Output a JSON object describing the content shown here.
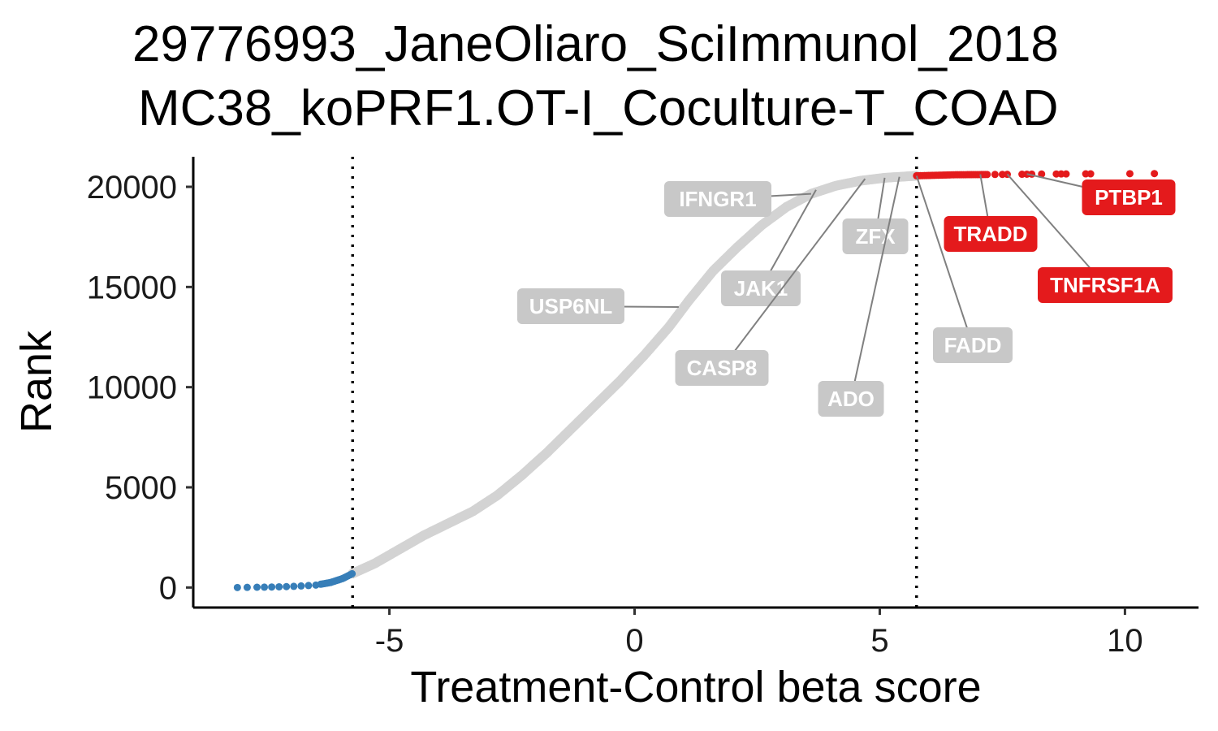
{
  "chart_data": {
    "type": "scatter",
    "title_line1": "29776993_JaneOliaro_SciImmunol_2018",
    "title_line2": "MC38_koPRF1.OT-I_Coculture-T_COAD",
    "xlabel": "Treatment-Control beta score",
    "ylabel": "Rank",
    "xlim": [
      -9,
      11.5
    ],
    "ylim": [
      -1000,
      21500
    ],
    "x_ticks": [
      {
        "value": -5,
        "label": "-5"
      },
      {
        "value": 0,
        "label": "0"
      },
      {
        "value": 5,
        "label": "5"
      },
      {
        "value": 10,
        "label": "10"
      }
    ],
    "y_ticks": [
      {
        "value": 0,
        "label": "0"
      },
      {
        "value": 5000,
        "label": "5000"
      },
      {
        "value": 10000,
        "label": "10000"
      },
      {
        "value": 15000,
        "label": "15000"
      },
      {
        "value": 20000,
        "label": "20000"
      }
    ],
    "thresholds": [
      -5.75,
      5.75
    ],
    "grid": false,
    "legend": "none",
    "colors": {
      "negative": "#377EB8",
      "neutral": "#D3D3D3",
      "positive": "#E41A1C",
      "neutral_label": "#C8C8C8"
    },
    "curve": [
      [
        -8.1,
        0
      ],
      [
        -7.5,
        20
      ],
      [
        -7.0,
        50
      ],
      [
        -6.5,
        120
      ],
      [
        -6.2,
        250
      ],
      [
        -5.95,
        450
      ],
      [
        -5.75,
        700
      ],
      [
        -5.3,
        1200
      ],
      [
        -4.8,
        1900
      ],
      [
        -4.3,
        2600
      ],
      [
        -3.8,
        3200
      ],
      [
        -3.3,
        3800
      ],
      [
        -2.8,
        4600
      ],
      [
        -2.3,
        5600
      ],
      [
        -1.8,
        6700
      ],
      [
        -1.3,
        7900
      ],
      [
        -0.8,
        9100
      ],
      [
        -0.3,
        10300
      ],
      [
        0.2,
        11600
      ],
      [
        0.7,
        13000
      ],
      [
        1.1,
        14300
      ],
      [
        1.6,
        15800
      ],
      [
        2.1,
        17000
      ],
      [
        2.6,
        18100
      ],
      [
        3.1,
        19000
      ],
      [
        3.6,
        19650
      ],
      [
        4.1,
        20050
      ],
      [
        4.6,
        20300
      ],
      [
        5.1,
        20450
      ],
      [
        5.75,
        20550
      ],
      [
        6.5,
        20600
      ],
      [
        7.5,
        20620
      ],
      [
        8.5,
        20640
      ],
      [
        9.5,
        20650
      ],
      [
        10.6,
        20660
      ]
    ],
    "labels": [
      {
        "gene": "IFNGR1",
        "x": 3.6,
        "y": 19650,
        "group": "neutral"
      },
      {
        "gene": "USP6NL",
        "x": 0.9,
        "y": 14000,
        "group": "neutral"
      },
      {
        "gene": "JAK1",
        "x": 3.7,
        "y": 19850,
        "group": "neutral"
      },
      {
        "gene": "CASP8",
        "x": 4.7,
        "y": 20400,
        "group": "neutral"
      },
      {
        "gene": "ZFX",
        "x": 5.1,
        "y": 20450,
        "group": "neutral"
      },
      {
        "gene": "ADO",
        "x": 5.4,
        "y": 20500,
        "group": "neutral"
      },
      {
        "gene": "FADD",
        "x": 5.75,
        "y": 20550,
        "group": "neutral"
      },
      {
        "gene": "TRADD",
        "x": 7.05,
        "y": 20620,
        "group": "positive"
      },
      {
        "gene": "TNFRSF1A",
        "x": 7.6,
        "y": 20630,
        "group": "positive"
      },
      {
        "gene": "PTBP1",
        "x": 8.0,
        "y": 20640,
        "group": "positive"
      }
    ]
  }
}
